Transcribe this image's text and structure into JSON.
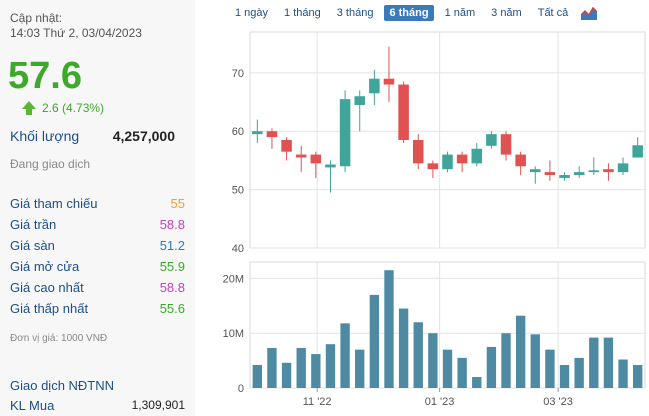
{
  "stock": {
    "updated_label": "Cập nhật:",
    "updated_time": "14:03 Thứ 2, 03/04/2023",
    "price": "57.6",
    "change": "2.6 (4.73%)",
    "volume_label": "Khối lượng",
    "volume": "4,257,000",
    "status": "Đang giao dịch",
    "stats": [
      {
        "label": "Giá tham chiếu",
        "value": "55",
        "color": "#f0a030"
      },
      {
        "label": "Giá trần",
        "value": "58.8",
        "color": "#c040c0"
      },
      {
        "label": "Giá sàn",
        "value": "51.2",
        "color": "#2a7cc0"
      },
      {
        "label": "Giá mở cửa",
        "value": "55.9",
        "color": "#3ea82c"
      },
      {
        "label": "Giá cao nhất",
        "value": "58.8",
        "color": "#c040c0"
      },
      {
        "label": "Giá thấp nhất",
        "value": "55.6",
        "color": "#3ea82c"
      }
    ],
    "unit_note": "Đơn vị giá: 1000 VNĐ",
    "foreign_label": "Giao dịch NĐTNN",
    "buy_label": "KL Mua",
    "buy_value": "1,309,901"
  },
  "tabs": [
    {
      "label": "1 ngày"
    },
    {
      "label": "1 tháng"
    },
    {
      "label": "3 tháng"
    },
    {
      "label": "6 tháng",
      "active": true
    },
    {
      "label": "1 năm"
    },
    {
      "label": "3 năm"
    },
    {
      "label": "Tất cả"
    }
  ],
  "chart_icon": "area-chart-icon",
  "colors": {
    "up": "#3fa59a",
    "down": "#e05252",
    "volume": "#4f8aa3",
    "grid": "#e3e3e3"
  },
  "chart_data": [
    {
      "type": "candlestick",
      "ylim": [
        40,
        77
      ],
      "y_ticks": [
        "70",
        "60",
        "50",
        "40"
      ],
      "candles": [
        {
          "o": 59.5,
          "c": 60.0,
          "h": 62.0,
          "l": 58.0
        },
        {
          "o": 60.0,
          "c": 59.0,
          "h": 60.5,
          "l": 57.0
        },
        {
          "o": 58.5,
          "c": 56.5,
          "h": 59.0,
          "l": 55.0
        },
        {
          "o": 56.0,
          "c": 55.5,
          "h": 57.5,
          "l": 53.0
        },
        {
          "o": 56.0,
          "c": 54.5,
          "h": 56.5,
          "l": 52.0
        },
        {
          "o": 53.8,
          "c": 54.3,
          "h": 55.0,
          "l": 49.5
        },
        {
          "o": 54.0,
          "c": 65.5,
          "h": 67.0,
          "l": 53.0
        },
        {
          "o": 64.5,
          "c": 66.0,
          "h": 67.0,
          "l": 60.0
        },
        {
          "o": 66.5,
          "c": 69.0,
          "h": 70.5,
          "l": 64.5
        },
        {
          "o": 69.0,
          "c": 68.0,
          "h": 74.5,
          "l": 65.0
        },
        {
          "o": 68.0,
          "c": 58.5,
          "h": 68.5,
          "l": 58.0
        },
        {
          "o": 58.5,
          "c": 54.5,
          "h": 59.5,
          "l": 53.5
        },
        {
          "o": 54.5,
          "c": 53.5,
          "h": 55.0,
          "l": 52.0
        },
        {
          "o": 53.5,
          "c": 56.0,
          "h": 56.5,
          "l": 53.0
        },
        {
          "o": 56.0,
          "c": 54.5,
          "h": 56.5,
          "l": 53.0
        },
        {
          "o": 54.5,
          "c": 57.0,
          "h": 58.0,
          "l": 54.0
        },
        {
          "o": 57.5,
          "c": 59.5,
          "h": 60.0,
          "l": 57.0
        },
        {
          "o": 59.5,
          "c": 56.0,
          "h": 60.0,
          "l": 55.0
        },
        {
          "o": 56.0,
          "c": 54.0,
          "h": 56.5,
          "l": 52.5
        },
        {
          "o": 53.0,
          "c": 53.5,
          "h": 54.0,
          "l": 51.0
        },
        {
          "o": 53.0,
          "c": 52.5,
          "h": 55.0,
          "l": 51.5
        },
        {
          "o": 52.0,
          "c": 52.5,
          "h": 53.0,
          "l": 51.5
        },
        {
          "o": 52.5,
          "c": 53.0,
          "h": 54.0,
          "l": 52.0
        },
        {
          "o": 53.0,
          "c": 53.3,
          "h": 55.5,
          "l": 52.5
        },
        {
          "o": 53.5,
          "c": 53.0,
          "h": 54.5,
          "l": 51.5
        },
        {
          "o": 53.0,
          "c": 54.5,
          "h": 55.5,
          "l": 52.5
        },
        {
          "o": 55.5,
          "c": 57.6,
          "h": 59.0,
          "l": 55.5
        }
      ]
    },
    {
      "type": "bar",
      "ylim": [
        0,
        23
      ],
      "y_ticks": [
        "20M",
        "10M",
        "0"
      ],
      "values": [
        4.2,
        7.3,
        4.6,
        7.3,
        6.2,
        8.0,
        11.8,
        7.0,
        17.0,
        21.5,
        14.5,
        12.0,
        10.0,
        7.0,
        5.5,
        2.0,
        7.5,
        10.0,
        13.2,
        9.8,
        7.0,
        4.2,
        5.5,
        9.2,
        9.2,
        5.2,
        4.2
      ],
      "x_ticks": [
        "11 '22",
        "01 '23",
        "03 '23"
      ]
    }
  ]
}
